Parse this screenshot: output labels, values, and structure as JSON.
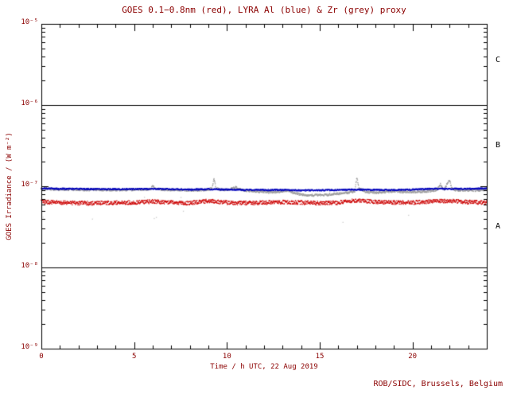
{
  "credit": "ROB/SIDC, Brussels, Belgium",
  "colors": {
    "background": "#ffffff",
    "frame": "#000000",
    "text": "#8b0000",
    "class_label": "#000000"
  },
  "chart_data": {
    "type": "scatter",
    "title": "GOES 0.1−0.8nm (red), LYRA Al (blue) & Zr (grey) proxy",
    "xlabel": "Time / h UTC, 22 Aug 2019",
    "ylabel": "GOES Irradiance / (W m⁻²)",
    "xlim": [
      0,
      24
    ],
    "ylim_log10": [
      -9,
      -5
    ],
    "x_tick_values": [
      0,
      5,
      10,
      15,
      20
    ],
    "x_tick_labels": [
      "0",
      "5",
      "10",
      "15",
      "20"
    ],
    "x_minor_tick_step_h": 1,
    "y_tick_log10": [
      -5,
      -6,
      -7,
      -8,
      -9
    ],
    "y_tick_labels": [
      "10⁻⁵",
      "10⁻⁶",
      "10⁻⁷",
      "10⁻⁸",
      "10⁻⁹"
    ],
    "hlines_log10": [
      -6,
      -8
    ],
    "class_labels": [
      {
        "label": "C",
        "log10": -5.45
      },
      {
        "label": "B",
        "log10": -6.5
      },
      {
        "label": "A",
        "log10": -7.5
      }
    ],
    "series": [
      {
        "name": "LYRA Zr proxy",
        "color": "#9b9b9b",
        "noise": 0.013,
        "outlier_fraction": 0.01,
        "outlier_color": "#cccccc",
        "y_scale": 1e-08,
        "x": [
          0,
          0.5,
          1,
          1.5,
          2,
          2.5,
          3,
          3.5,
          4,
          4.5,
          5,
          5.5,
          5.9,
          6,
          6.1,
          6.5,
          7,
          7.5,
          8,
          8.5,
          9,
          9.2,
          9.3,
          9.4,
          9.6,
          10,
          10.4,
          10.5,
          10.6,
          11,
          11.5,
          12,
          12.5,
          13,
          13.3,
          13.5,
          14,
          14.5,
          15,
          15.5,
          16,
          16.5,
          16.9,
          17,
          17.1,
          17.5,
          18,
          18.5,
          19,
          19.5,
          20,
          20.5,
          21,
          21.3,
          21.5,
          21.7,
          22,
          22.1,
          22.3,
          22.5,
          23,
          23.5,
          24
        ],
        "y": [
          9.3,
          9.2,
          9.1,
          9.1,
          9.1,
          9.0,
          9.1,
          9.0,
          9.0,
          9.0,
          9.1,
          9.1,
          9.2,
          10.3,
          9.4,
          9.1,
          9.0,
          9.0,
          8.9,
          8.9,
          9.1,
          9.5,
          12.3,
          9.6,
          9.1,
          9.0,
          9.6,
          9.9,
          9.3,
          8.8,
          8.7,
          8.5,
          8.4,
          8.7,
          8.9,
          8.4,
          7.9,
          7.7,
          7.8,
          7.9,
          8.1,
          8.3,
          8.6,
          12.9,
          9.5,
          8.5,
          8.3,
          8.5,
          8.7,
          8.5,
          8.5,
          8.6,
          8.7,
          9.0,
          10.6,
          9.0,
          11.9,
          9.6,
          9.0,
          8.9,
          8.9,
          8.9,
          9.1
        ]
      },
      {
        "name": "GOES 0.1-0.8nm",
        "color": "#cc0000",
        "noise": 0.024,
        "y_scale": 1e-08,
        "x": [
          0,
          1,
          2,
          3,
          4,
          5,
          6,
          7,
          8,
          9,
          10,
          11,
          12,
          13,
          14,
          15,
          16,
          17,
          18,
          19,
          20,
          21,
          22,
          23,
          24
        ],
        "y": [
          6.4,
          6.3,
          6.2,
          6.2,
          6.3,
          6.3,
          6.5,
          6.3,
          6.2,
          6.6,
          6.3,
          6.2,
          6.3,
          6.4,
          6.3,
          6.2,
          6.3,
          6.7,
          6.4,
          6.3,
          6.3,
          6.5,
          6.6,
          6.4,
          6.3
        ]
      },
      {
        "name": "LYRA Al proxy",
        "color": "#0000bb",
        "noise": 0.009,
        "y_scale": 1e-08,
        "x": [
          0,
          1,
          2,
          3,
          4,
          5,
          6,
          7,
          8,
          9,
          10,
          11,
          12,
          13,
          14,
          15,
          16,
          17,
          18,
          19,
          20,
          21,
          22,
          23,
          24
        ],
        "y": [
          9.4,
          9.3,
          9.3,
          9.2,
          9.2,
          9.2,
          9.3,
          9.2,
          9.1,
          9.2,
          9.1,
          9.0,
          9.0,
          9.0,
          8.9,
          8.9,
          9.0,
          9.1,
          9.0,
          9.0,
          9.1,
          9.3,
          9.3,
          9.3,
          9.4
        ]
      }
    ]
  }
}
